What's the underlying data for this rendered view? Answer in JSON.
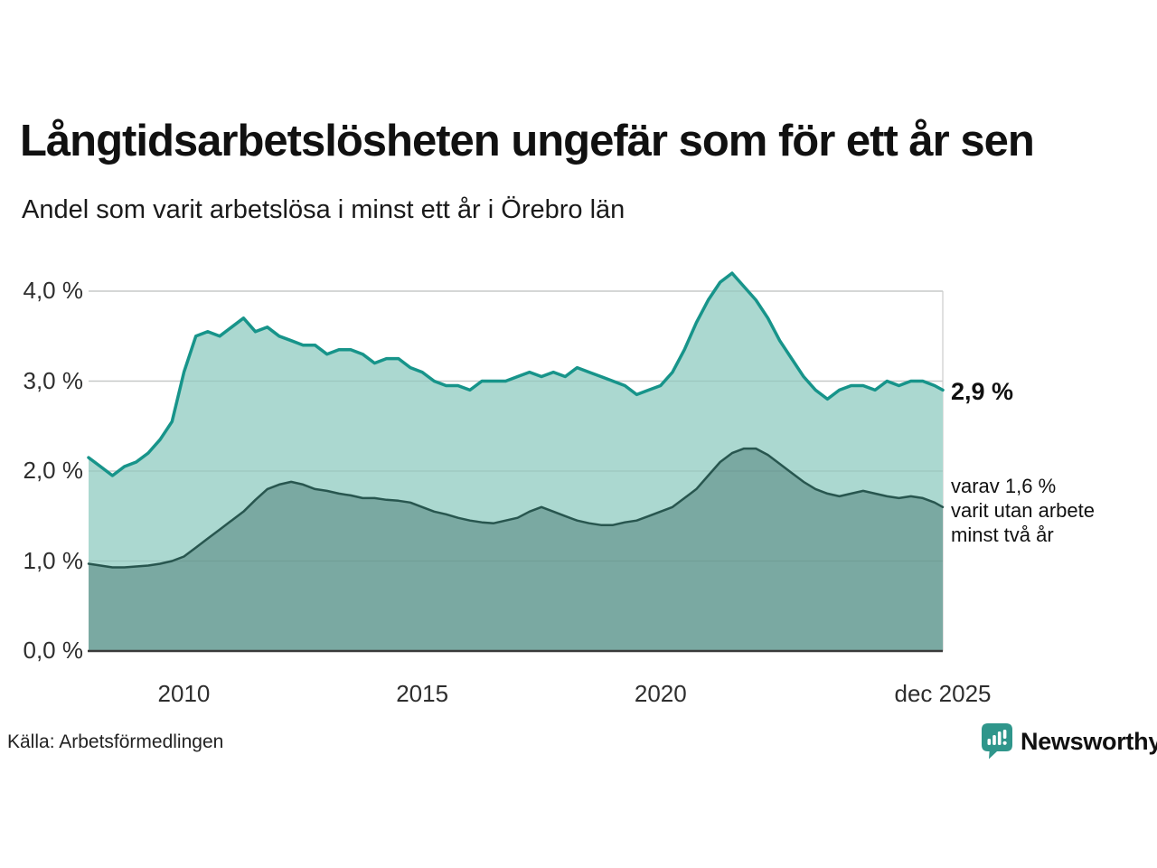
{
  "header": {
    "title": "Långtidsarbetslösheten ungefär som för ett år sen",
    "subtitle": "Andel som varit arbetslösa i minst ett år i Örebro län"
  },
  "annotations": {
    "latest_total": "2,9 %",
    "secondary_lines": [
      "varav 1,6 %",
      "varit utan arbete",
      "minst två år"
    ]
  },
  "source": {
    "label": "Källa: Arbetsförmedlingen"
  },
  "branding": {
    "name": "Newsworthy",
    "color": "#2f968b",
    "logo_icon": "speech-bubble-bar-chart"
  },
  "colors": {
    "accent_line": "#17948a",
    "accent_fill": "#abd8d0",
    "dark_line": "#28564f",
    "dark_fill": "#7aa9a2",
    "grid": "#d9d9d9",
    "axis_baseline": "#3a3a3a",
    "text": "#111111"
  },
  "chart_data": {
    "type": "area",
    "title": "Långtidsarbetslösheten ungefär som för ett år sen",
    "subtitle": "Andel som varit arbetslösa i minst ett år i Örebro län",
    "xlabel": "",
    "ylabel": "",
    "x_unit": "decimal_year",
    "xlim": [
      2008,
      2025.92
    ],
    "ylim": [
      0,
      4.3
    ],
    "grid": true,
    "y_ticks": [
      {
        "label": "0,0 %",
        "value": 0
      },
      {
        "label": "1,0 %",
        "value": 1
      },
      {
        "label": "2,0 %",
        "value": 2
      },
      {
        "label": "3,0 %",
        "value": 3
      },
      {
        "label": "4,0 %",
        "value": 4
      }
    ],
    "x_ticks": [
      {
        "label": "2010",
        "value": 2010
      },
      {
        "label": "2015",
        "value": 2015
      },
      {
        "label": "2020",
        "value": 2020
      },
      {
        "label": "dec 2025",
        "value": 2025.92
      }
    ],
    "x": [
      2008,
      2008.25,
      2008.5,
      2008.75,
      2009,
      2009.25,
      2009.5,
      2009.75,
      2010,
      2010.25,
      2010.5,
      2010.75,
      2011,
      2011.25,
      2011.5,
      2011.75,
      2012,
      2012.25,
      2012.5,
      2012.75,
      2013,
      2013.25,
      2013.5,
      2013.75,
      2014,
      2014.25,
      2014.5,
      2014.75,
      2015,
      2015.25,
      2015.5,
      2015.75,
      2016,
      2016.25,
      2016.5,
      2016.75,
      2017,
      2017.25,
      2017.5,
      2017.75,
      2018,
      2018.25,
      2018.5,
      2018.75,
      2019,
      2019.25,
      2019.5,
      2019.75,
      2020,
      2020.25,
      2020.5,
      2020.75,
      2021,
      2021.25,
      2021.5,
      2021.75,
      2022,
      2022.25,
      2022.5,
      2022.75,
      2023,
      2023.25,
      2023.5,
      2023.75,
      2024,
      2024.25,
      2024.5,
      2024.75,
      2025,
      2025.25,
      2025.5,
      2025.75,
      2025.92
    ],
    "series": [
      {
        "name": "Andel som varit arbetslösa i minst ett år",
        "latest_label": "2,9 %",
        "latest_value": 2.9,
        "line_color": "#17948a",
        "fill_color": "#abd8d0",
        "line_width": 3.5,
        "values": [
          2.15,
          2.05,
          1.95,
          2.05,
          2.1,
          2.2,
          2.35,
          2.55,
          3.1,
          3.5,
          3.55,
          3.5,
          3.6,
          3.7,
          3.55,
          3.6,
          3.5,
          3.45,
          3.4,
          3.4,
          3.3,
          3.35,
          3.35,
          3.3,
          3.2,
          3.25,
          3.25,
          3.15,
          3.1,
          3.0,
          2.95,
          2.95,
          2.9,
          3.0,
          3.0,
          3.0,
          3.05,
          3.1,
          3.05,
          3.1,
          3.05,
          3.15,
          3.1,
          3.05,
          3.0,
          2.95,
          2.85,
          2.9,
          2.95,
          3.1,
          3.35,
          3.65,
          3.9,
          4.1,
          4.2,
          4.05,
          3.9,
          3.7,
          3.45,
          3.25,
          3.05,
          2.9,
          2.8,
          2.9,
          2.95,
          2.95,
          2.9,
          3.0,
          2.95,
          3.0,
          3.0,
          2.95,
          2.9
        ]
      },
      {
        "name": "varav utan arbete minst två år",
        "latest_label": "1,6 %",
        "latest_value": 1.6,
        "line_color": "#28564f",
        "fill_color": "#7aa9a2",
        "line_width": 2.5,
        "values": [
          0.97,
          0.95,
          0.93,
          0.93,
          0.94,
          0.95,
          0.97,
          1.0,
          1.05,
          1.15,
          1.25,
          1.35,
          1.45,
          1.55,
          1.68,
          1.8,
          1.85,
          1.88,
          1.85,
          1.8,
          1.78,
          1.75,
          1.73,
          1.7,
          1.7,
          1.68,
          1.67,
          1.65,
          1.6,
          1.55,
          1.52,
          1.48,
          1.45,
          1.43,
          1.42,
          1.45,
          1.48,
          1.55,
          1.6,
          1.55,
          1.5,
          1.45,
          1.42,
          1.4,
          1.4,
          1.43,
          1.45,
          1.5,
          1.55,
          1.6,
          1.7,
          1.8,
          1.95,
          2.1,
          2.2,
          2.25,
          2.25,
          2.18,
          2.08,
          1.98,
          1.88,
          1.8,
          1.75,
          1.72,
          1.75,
          1.78,
          1.75,
          1.72,
          1.7,
          1.72,
          1.7,
          1.65,
          1.6
        ]
      }
    ],
    "legend_position": "right-annotations"
  }
}
